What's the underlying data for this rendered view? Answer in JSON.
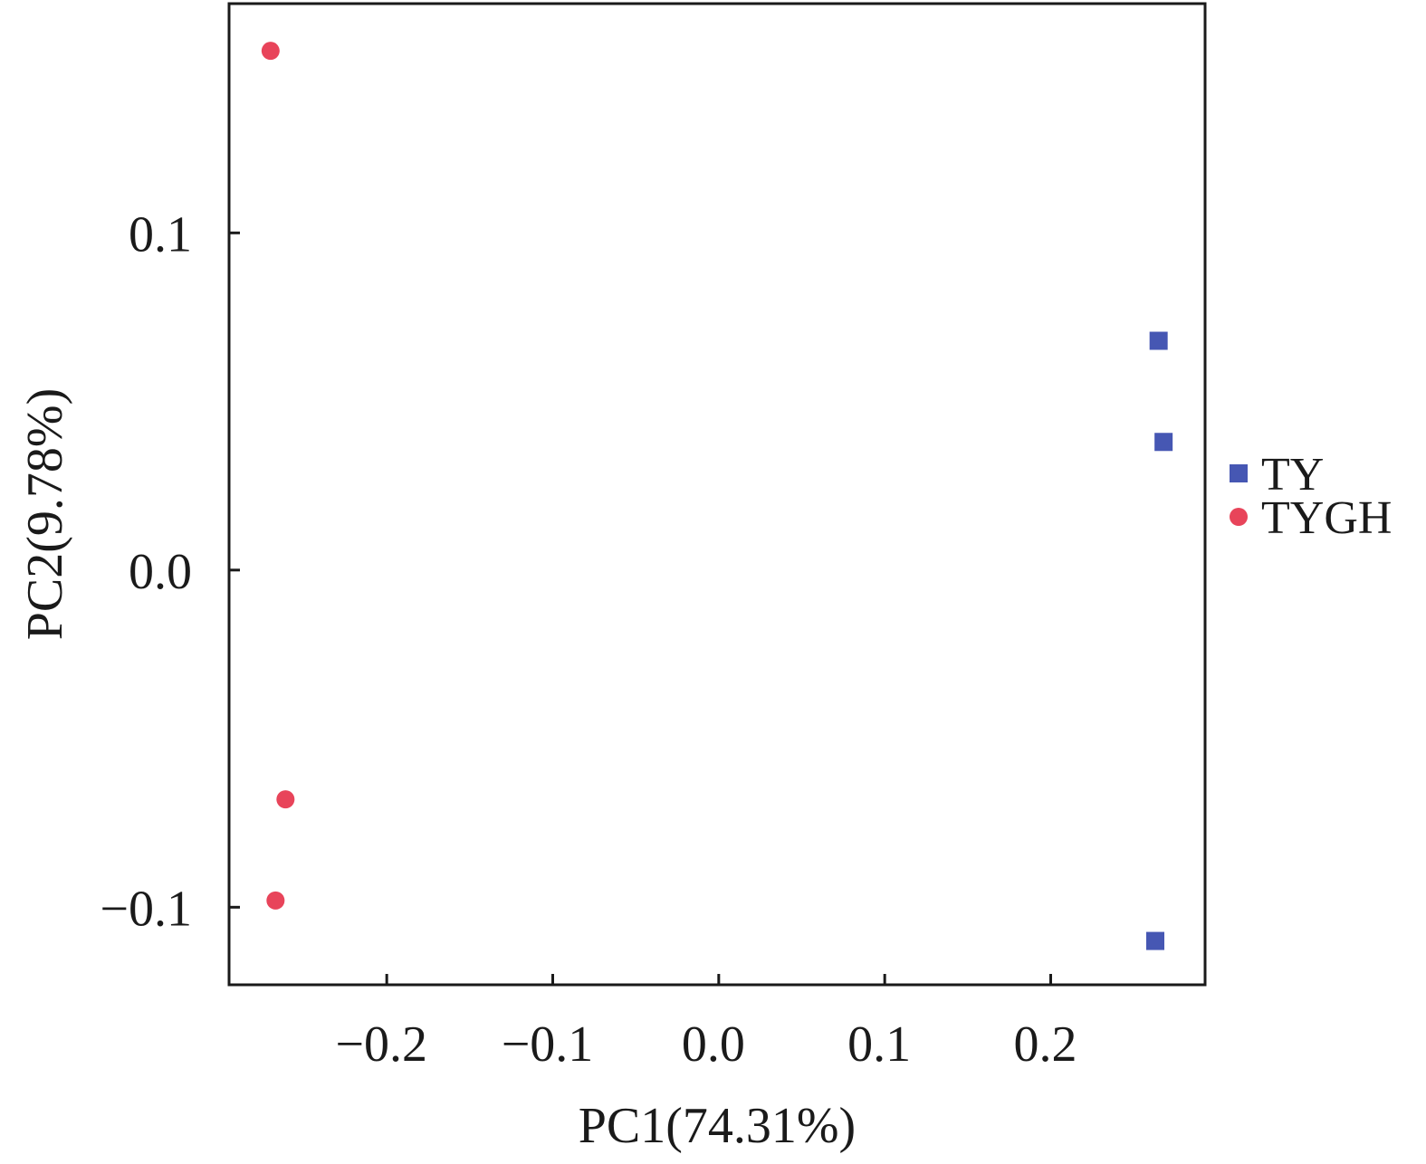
{
  "chart_data": {
    "type": "scatter",
    "title": "",
    "xlabel": "PC1(74.31%)",
    "ylabel": "PC2(9.78%)",
    "xlim": [
      -0.295,
      0.293
    ],
    "ylim": [
      -0.123,
      0.168
    ],
    "x_ticks": [
      -0.2,
      -0.1,
      0.0,
      0.1,
      0.2
    ],
    "x_tick_labels": [
      "−0.2",
      "−0.1",
      "0.0",
      "0.1",
      "0.2"
    ],
    "y_ticks": [
      -0.1,
      0.0,
      0.1
    ],
    "y_tick_labels": [
      "−0.1",
      "0.0",
      "0.1"
    ],
    "grid": false,
    "legend_position": "right",
    "series": [
      {
        "name": "TY",
        "marker": "square",
        "color": "#4657b3",
        "points": [
          {
            "x": 0.265,
            "y": 0.068
          },
          {
            "x": 0.268,
            "y": 0.038
          },
          {
            "x": 0.263,
            "y": -0.11
          }
        ]
      },
      {
        "name": "TYGH",
        "marker": "circle",
        "color": "#e8445a",
        "points": [
          {
            "x": -0.27,
            "y": 0.154
          },
          {
            "x": -0.261,
            "y": -0.068
          },
          {
            "x": -0.267,
            "y": -0.098
          }
        ]
      }
    ]
  }
}
